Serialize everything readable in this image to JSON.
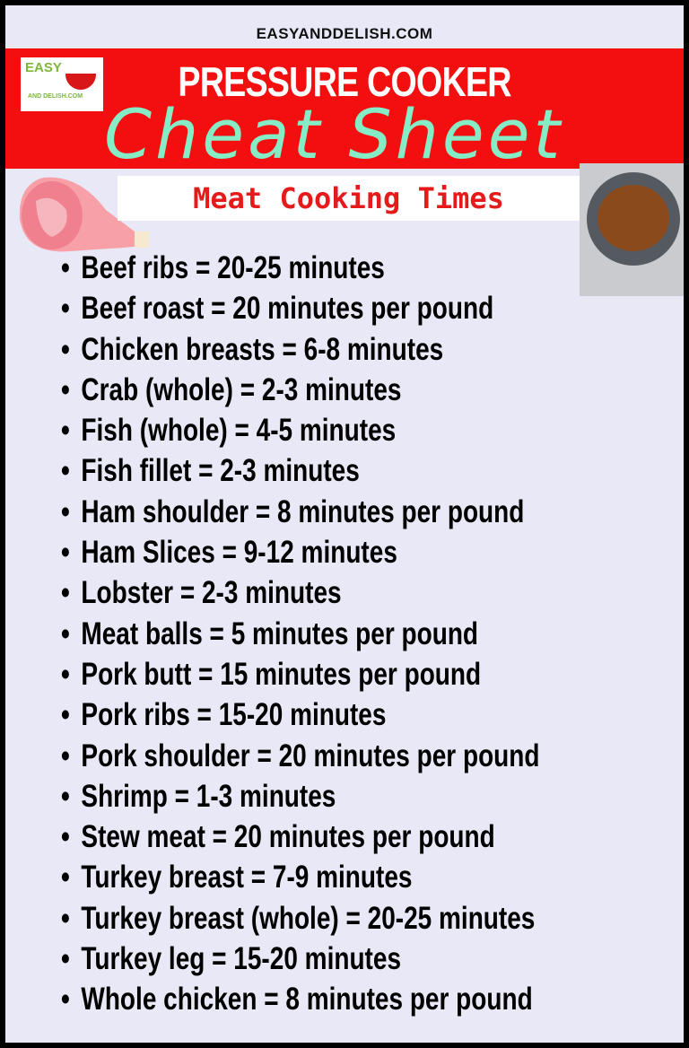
{
  "site": "EASYANDDELISH.COM",
  "logo": {
    "text": "EASY AND DELISH.COM"
  },
  "title_line1": "PRESSURE COOKER",
  "title_line2": "Cheat Sheet",
  "subtitle": "Meat Cooking Times",
  "colors": {
    "red": "#f30f0f",
    "mint": "#86ecc6",
    "background": "#e8e8f6"
  },
  "items": [
    "Beef ribs = 20-25 minutes",
    "Beef roast = 20 minutes per pound",
    "Chicken breasts = 6-8 minutes",
    "Crab (whole) = 2-3 minutes",
    "Fish (whole) = 4-5 minutes",
    "Fish fillet = 2-3 minutes",
    "Ham shoulder = 8 minutes per pound",
    "Ham Slices = 9-12 minutes",
    "Lobster = 2-3 minutes",
    "Meat balls = 5 minutes per pound",
    "Pork butt = 15 minutes per pound",
    "Pork ribs = 15-20 minutes",
    "Pork shoulder = 20 minutes per pound",
    "Shrimp = 1-3 minutes",
    "Stew meat = 20 minutes per pound",
    "Turkey breast = 7-9 minutes",
    "Turkey breast (whole) = 20-25 minutes",
    "Turkey leg = 15-20 minutes",
    "Whole chicken = 8 minutes per pound"
  ]
}
